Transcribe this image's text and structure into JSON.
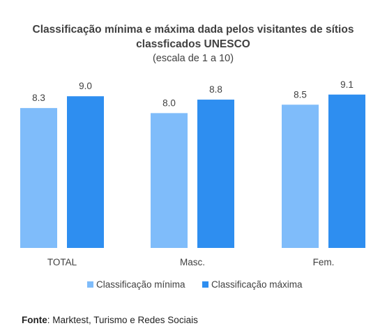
{
  "chart_data": {
    "type": "bar",
    "title_lines": [
      "Classificação mínima e máxima dada pelos visitantes de sítios",
      "classficados UNESCO"
    ],
    "subtitle": "(escala de 1 a 10)",
    "categories": [
      "TOTAL",
      "Masc.",
      "Fem."
    ],
    "series": [
      {
        "name": "Classificação mínima",
        "values": [
          8.3,
          8.0,
          8.5
        ],
        "color": "#7fbcfa"
      },
      {
        "name": "Classificação máxima",
        "values": [
          9.0,
          8.8,
          9.1
        ],
        "color": "#2e8ef0"
      }
    ],
    "value_format": "one-decimal",
    "ylim": [
      0,
      10
    ],
    "grid": false,
    "legend_position": "bottom"
  },
  "footer": {
    "source_label": "Fonte",
    "source_text": ": Marktest, Turismo e Redes Sociais"
  }
}
